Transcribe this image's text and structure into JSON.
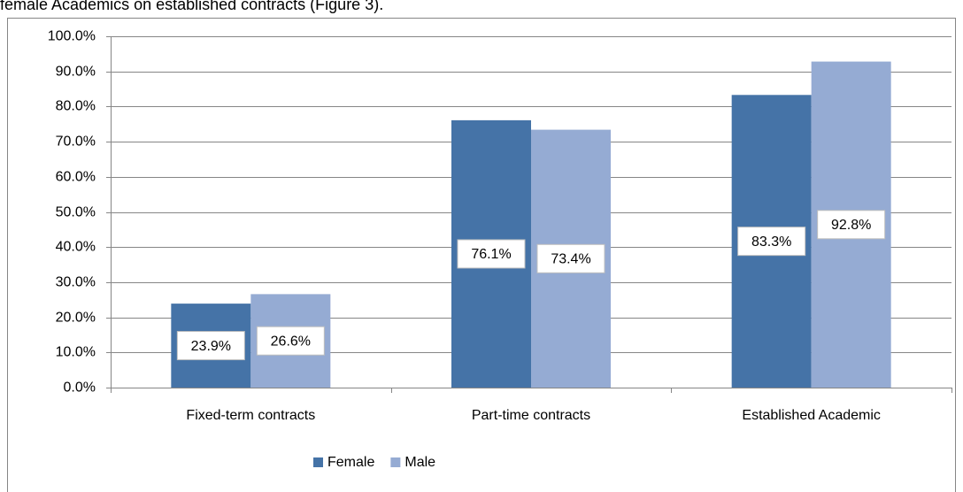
{
  "caption": "female Academics on established contracts (Figure 3).",
  "chart_data": {
    "type": "bar",
    "categories": [
      "Fixed-term contracts",
      "Part-time contracts",
      "Established Academic"
    ],
    "series": [
      {
        "name": "Female",
        "color": "#4573a7",
        "values": [
          23.9,
          76.1,
          83.3
        ],
        "value_labels": [
          "23.9%",
          "76.1%",
          "83.3%"
        ]
      },
      {
        "name": "Male",
        "color": "#95abd3",
        "values": [
          26.6,
          73.4,
          92.8
        ],
        "value_labels": [
          "26.6%",
          "73.4%",
          "92.8%"
        ]
      }
    ],
    "ylim": [
      0,
      100
    ],
    "yticks": [
      {
        "value": 0,
        "label": "0.0%"
      },
      {
        "value": 10,
        "label": "10.0%"
      },
      {
        "value": 20,
        "label": "20.0%"
      },
      {
        "value": 30,
        "label": "30.0%"
      },
      {
        "value": 40,
        "label": "40.0%"
      },
      {
        "value": 50,
        "label": "50.0%"
      },
      {
        "value": 60,
        "label": "60.0%"
      },
      {
        "value": 70,
        "label": "70.0%"
      },
      {
        "value": 80,
        "label": "80.0%"
      },
      {
        "value": 90,
        "label": "90.0%"
      },
      {
        "value": 100,
        "label": "100.0%"
      }
    ],
    "grid": true,
    "legend": "bottom"
  }
}
